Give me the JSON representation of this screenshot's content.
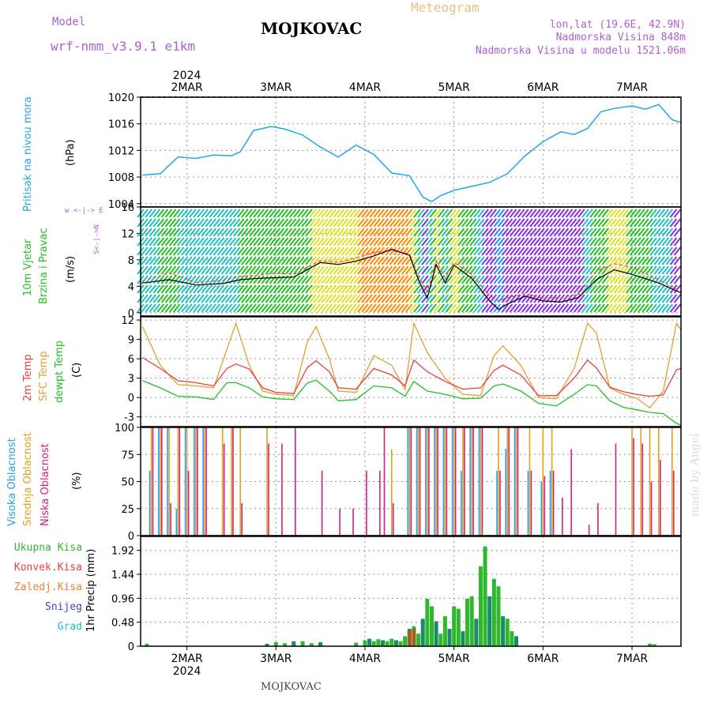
{
  "header": {
    "model_label": "Model",
    "model_name": "wrf-nmm_v3.9.1 e1km",
    "station": "MOJKOVAC",
    "title": "Meteogram",
    "lonlat": "lon,lat (19.6E, 42.9N)",
    "elevation": "Nadmorska Visina 848m",
    "model_elevation": "Nadmorska Visina u modelu 1521.06m"
  },
  "footer": {
    "station": "MOJKOVAC",
    "watermark": "made by Angel"
  },
  "axis": {
    "year": "2024",
    "days": [
      "2MAR",
      "3MAR",
      "4MAR",
      "5MAR",
      "6MAR",
      "7MAR"
    ],
    "x_range_days": [
      1.48,
      7.55
    ]
  },
  "panels": {
    "pressure": {
      "title": "Pritisak na nivou mora",
      "unit": "(hPa)",
      "ticks": [
        "1004",
        "1008",
        "1012",
        "1016",
        "1020"
      ]
    },
    "wind": {
      "title1": "10m Vjetar",
      "title2": "Brzina i Pravac",
      "unit": "(m/s)",
      "ticks": [
        "0",
        "4",
        "8",
        "12",
        "16"
      ],
      "compass": "w  <-|->  E",
      "compass_ns": "S<-|->N"
    },
    "temp": {
      "t2m": "2m Temp",
      "sfc": "SFC Temp",
      "dew": "dewpt Temp",
      "unit": "(C)",
      "ticks": [
        "-3",
        "0",
        "3",
        "6",
        "9",
        "12"
      ]
    },
    "cloud": {
      "high": "Visoka Oblacnost",
      "mid": "Srednja Oblacnost",
      "low": "Niska Oblacnost",
      "unit": "(%)",
      "ticks": [
        "0",
        "25",
        "50",
        "75",
        "100"
      ]
    },
    "precip": {
      "unit": "1hr Precip (mm)",
      "ticks": [
        "0",
        "0.48",
        "0.96",
        "1.44",
        "1.92"
      ],
      "legend": [
        "Ukupna Kisa",
        "Konvek.Kisa",
        "Zaledj.Kisa",
        "Snijeg",
        "Grad"
      ]
    }
  },
  "colors": {
    "pressure": "#22a7e8",
    "t2m": "#e84040",
    "sfc": "#e0a030",
    "dew": "#22c022",
    "high": "#22a0e8",
    "mid": "#e0a020",
    "low": "#d02080",
    "total": "#2eb82e",
    "conv": "#e84040",
    "frz": "#f08030",
    "snow": "#4040e0",
    "hail": "#20c0c0",
    "title_pressure": "#22a7e8",
    "title_wind": "#22c022",
    "title_model": "#b060d0"
  },
  "chart_data": [
    {
      "type": "line",
      "title": "Pritisak na nivou mora",
      "ylabel": "(hPa)",
      "ylim": [
        1003.5,
        1020
      ],
      "x": [
        1.5,
        1.7,
        1.9,
        2.1,
        2.3,
        2.5,
        2.6,
        2.75,
        2.95,
        3.1,
        3.3,
        3.5,
        3.7,
        3.9,
        4.1,
        4.3,
        4.5,
        4.65,
        4.75,
        4.85,
        5.0,
        5.2,
        5.4,
        5.6,
        5.8,
        6.0,
        6.2,
        6.35,
        6.5,
        6.65,
        6.8,
        7.0,
        7.15,
        7.3,
        7.45,
        7.55
      ],
      "series": [
        {
          "values": [
            1008.3,
            1008.5,
            1011,
            1010.8,
            1011.3,
            1011.2,
            1011.8,
            1015,
            1015.6,
            1015.2,
            1014.3,
            1012.5,
            1011,
            1012.8,
            1011.4,
            1008.6,
            1008.2,
            1005,
            1004.3,
            1005.2,
            1006,
            1006.6,
            1007.2,
            1008.5,
            1011.2,
            1013.3,
            1014.8,
            1014.4,
            1015.3,
            1017.8,
            1018.3,
            1018.7,
            1018.2,
            1018.9,
            1016.6,
            1016.2
          ]
        }
      ]
    },
    {
      "type": "line",
      "title": "10m Vjetar Brzina i Pravac",
      "ylabel": "(m/s)",
      "ylim": [
        -0.5,
        16
      ],
      "x": [
        1.5,
        1.8,
        2.1,
        2.4,
        2.6,
        2.8,
        3.0,
        3.2,
        3.5,
        3.7,
        3.9,
        4.1,
        4.3,
        4.5,
        4.6,
        4.7,
        4.8,
        4.9,
        5.0,
        5.2,
        5.4,
        5.5,
        5.6,
        5.8,
        6.0,
        6.2,
        6.4,
        6.6,
        6.8,
        7.0,
        7.3,
        7.55
      ],
      "series": [
        {
          "values": [
            4.5,
            5.0,
            4.2,
            4.4,
            5.0,
            5.2,
            5.3,
            5.4,
            7.6,
            7.3,
            7.8,
            8.6,
            9.6,
            8.7,
            5.0,
            2.2,
            7.3,
            4.5,
            7.2,
            5.2,
            1.8,
            0.5,
            1.3,
            2.5,
            1.8,
            1.6,
            2.3,
            5.0,
            6.5,
            5.8,
            4.5,
            3.0
          ]
        },
        {
          "values": [
            4.8,
            6.0,
            4.6,
            4.9,
            5.5,
            5.7,
            6.0,
            5.8,
            7.9,
            7.6,
            8.3,
            9.1,
            9.4,
            8.9,
            5.5,
            3.2,
            7.8,
            5.3,
            7.6,
            5.8,
            2.6,
            1.8,
            2.3,
            2.9,
            2.2,
            2.3,
            2.8,
            6.3,
            7.4,
            6.9,
            5.0,
            3.2
          ]
        }
      ]
    },
    {
      "type": "line",
      "title": "2m Temp / SFC Temp / dewpt Temp",
      "ylabel": "(C)",
      "ylim": [
        -4.5,
        12.5
      ],
      "x": [
        1.5,
        1.7,
        1.9,
        2.1,
        2.3,
        2.45,
        2.55,
        2.7,
        2.85,
        3.0,
        3.2,
        3.35,
        3.45,
        3.6,
        3.7,
        3.9,
        4.1,
        4.3,
        4.45,
        4.55,
        4.7,
        4.9,
        5.1,
        5.3,
        5.45,
        5.55,
        5.75,
        5.95,
        6.15,
        6.35,
        6.5,
        6.6,
        6.75,
        6.9,
        7.05,
        7.2,
        7.35,
        7.5,
        7.55
      ],
      "series": [
        {
          "name": "2m Temp",
          "values": [
            6.2,
            4.5,
            2.6,
            2.3,
            1.8,
            4.5,
            5.2,
            4.4,
            1.5,
            0.8,
            0.6,
            4.6,
            5.7,
            4.0,
            1.5,
            1.3,
            4.5,
            3.5,
            1.8,
            5.8,
            4.0,
            2.5,
            1.3,
            1.5,
            4.2,
            5.0,
            3.5,
            0.3,
            0.3,
            3.0,
            5.8,
            4.6,
            1.6,
            0.9,
            0.5,
            0.2,
            0.4,
            4.3,
            4.5
          ]
        },
        {
          "name": "SFC Temp",
          "values": [
            11,
            5.0,
            2.0,
            1.8,
            1.5,
            7.5,
            11.5,
            5.0,
            1.0,
            0.5,
            0.3,
            8.5,
            11.0,
            6.0,
            1.0,
            0.8,
            6.5,
            5.0,
            1.2,
            11.5,
            7.0,
            3.0,
            0.5,
            0.3,
            6.5,
            8.0,
            5.0,
            0,
            -0.2,
            4.5,
            11.5,
            10.0,
            1.5,
            0.5,
            -0.1,
            -1.6,
            1.0,
            11.5,
            10.5
          ]
        },
        {
          "name": "dewpt Temp",
          "values": [
            2.6,
            1.5,
            0.2,
            0.1,
            -0.3,
            2.3,
            2.3,
            1.5,
            0.1,
            -0.2,
            -0.3,
            2.2,
            2.7,
            1.0,
            -0.5,
            -0.3,
            1.8,
            1.5,
            0.2,
            2.5,
            1.0,
            0.5,
            -0.2,
            -0.1,
            1.8,
            2.1,
            1.0,
            -0.9,
            -1.3,
            0.5,
            2.0,
            1.8,
            -0.5,
            -1.5,
            -1.9,
            -2.3,
            -2.5,
            -4.0,
            -4.3
          ]
        }
      ]
    },
    {
      "type": "bar",
      "title": "Visoka / Srednja / Niska Oblacnost",
      "ylabel": "(%)",
      "ylim": [
        0,
        100
      ],
      "x": [
        1.6,
        1.7,
        1.8,
        1.9,
        2.0,
        2.1,
        2.2,
        2.4,
        2.5,
        2.6,
        2.9,
        3.05,
        3.2,
        3.5,
        3.7,
        3.85,
        4.0,
        4.15,
        4.2,
        4.3,
        4.5,
        4.6,
        4.7,
        4.8,
        4.9,
        5.0,
        5.1,
        5.2,
        5.3,
        5.5,
        5.6,
        5.7,
        5.85,
        6.0,
        6.1,
        6.2,
        6.3,
        6.5,
        6.6,
        6.8,
        7.0,
        7.1,
        7.2,
        7.3,
        7.45
      ],
      "series": [
        {
          "name": "Visoka Oblacnost",
          "values": [
            60,
            100,
            100,
            25,
            100,
            100,
            100,
            0,
            0,
            0,
            0,
            0,
            0,
            0,
            0,
            0,
            0,
            0,
            0,
            0,
            100,
            100,
            100,
            100,
            100,
            100,
            60,
            100,
            100,
            60,
            80,
            100,
            60,
            50,
            60,
            0,
            0,
            0,
            0,
            0,
            0,
            0,
            0,
            0,
            0
          ]
        },
        {
          "name": "Srednja Oblacnost",
          "values": [
            100,
            100,
            100,
            100,
            100,
            100,
            100,
            100,
            100,
            100,
            100,
            0,
            0,
            0,
            0,
            0,
            0,
            0,
            0,
            80,
            100,
            100,
            100,
            100,
            100,
            100,
            100,
            100,
            100,
            100,
            100,
            100,
            100,
            100,
            100,
            0,
            0,
            0,
            0,
            0,
            100,
            100,
            100,
            100,
            100
          ]
        },
        {
          "name": "Niska Oblacnost",
          "values": [
            100,
            100,
            30,
            100,
            60,
            100,
            100,
            85,
            100,
            30,
            85,
            85,
            100,
            60,
            25,
            25,
            60,
            60,
            100,
            30,
            100,
            100,
            100,
            100,
            100,
            100,
            100,
            100,
            100,
            60,
            100,
            100,
            60,
            55,
            60,
            35,
            80,
            10,
            30,
            85,
            90,
            85,
            50,
            70,
            60
          ]
        }
      ]
    },
    {
      "type": "bar",
      "title": "1hr Precip",
      "ylabel": "1hr Precip (mm)",
      "ylim": [
        0,
        2.2
      ],
      "x": [
        1.55,
        2.9,
        3.0,
        3.1,
        3.2,
        3.3,
        3.4,
        3.5,
        3.9,
        4.0,
        4.05,
        4.1,
        4.15,
        4.2,
        4.25,
        4.3,
        4.35,
        4.4,
        4.45,
        4.5,
        4.55,
        4.6,
        4.65,
        4.7,
        4.75,
        4.8,
        4.85,
        4.9,
        4.95,
        5.0,
        5.05,
        5.1,
        5.15,
        5.2,
        5.25,
        5.3,
        5.35,
        5.4,
        5.45,
        5.5,
        5.55,
        5.6,
        5.65,
        5.7,
        7.2,
        7.25
      ],
      "series": [
        {
          "name": "Ukupna Kisa",
          "values": [
            0.05,
            0.05,
            0.08,
            0.06,
            0.1,
            0.1,
            0.06,
            0.08,
            0.07,
            0.12,
            0.15,
            0.1,
            0.14,
            0.12,
            0.1,
            0.15,
            0.12,
            0.1,
            0.2,
            0.35,
            0.4,
            0.25,
            0.55,
            0.95,
            0.8,
            0.5,
            0.25,
            0.6,
            0.35,
            0.8,
            0.75,
            0.3,
            0.95,
            1.0,
            0.55,
            1.6,
            2.0,
            1.0,
            1.35,
            1.2,
            0.6,
            0.55,
            0.3,
            0.2,
            0.05,
            0.04
          ]
        },
        {
          "name": "Konvek.Kisa",
          "values": [
            0,
            0,
            0,
            0,
            0,
            0,
            0,
            0,
            0,
            0,
            0,
            0,
            0,
            0,
            0,
            0,
            0,
            0,
            0,
            0.3,
            0.35,
            0,
            0,
            0,
            0,
            0,
            0,
            0,
            0,
            0,
            0,
            0,
            0,
            0,
            0,
            0,
            0,
            0,
            0,
            0,
            0,
            0,
            0,
            0,
            0,
            0
          ]
        }
      ]
    }
  ]
}
